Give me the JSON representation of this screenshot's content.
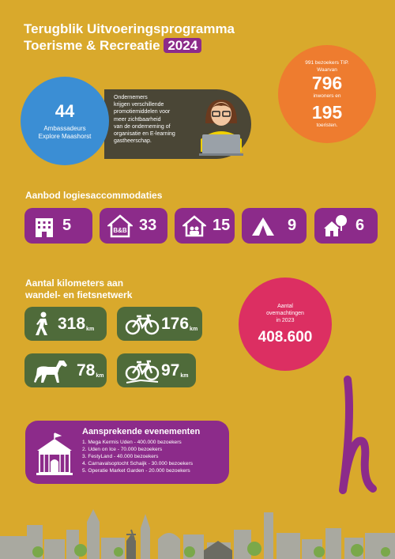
{
  "header": {
    "title_line1": "Terugblik Uitvoeringsprogramma",
    "title_line2": "Toerisme & Recreatie",
    "year": "2024"
  },
  "ambassadors": {
    "count": "44",
    "label_line1": "Ambassadeurs",
    "label_line2": "Explore Maashorst"
  },
  "entrepreneurs": {
    "lines": [
      "Ondernemers",
      "krijgen verschillende",
      "promotiemiddelen voor",
      "meer zichtbaarheid",
      "van de onderneming of",
      "organisatie en E-learning",
      "gastheerschap."
    ]
  },
  "tip": {
    "intro_line1": "991 bezoekers TIP.",
    "intro_line2": "Waarvan",
    "residents_count": "796",
    "residents_label": "inwoners en",
    "tourists_count": "195",
    "tourists_label": "toeristen."
  },
  "accommodations": {
    "heading": "Aanbod logiesaccommodaties",
    "items": [
      {
        "icon": "hotel-icon",
        "value": "5"
      },
      {
        "icon": "bnb-icon",
        "value": "33",
        "icon_text": "B&B"
      },
      {
        "icon": "holiday-home-icon",
        "value": "15"
      },
      {
        "icon": "tent-icon",
        "value": "9"
      },
      {
        "icon": "nature-house-icon",
        "value": "6"
      }
    ]
  },
  "network": {
    "heading_line1": "Aantal kilometers aan",
    "heading_line2": "wandel- en fietsnetwerk",
    "items": [
      {
        "icon": "walking-icon",
        "value": "318",
        "unit": "km"
      },
      {
        "icon": "bicycle-icon",
        "value": "176",
        "unit": "km"
      },
      {
        "icon": "horse-icon",
        "value": "78",
        "unit": "km"
      },
      {
        "icon": "mountain-bike-icon",
        "value": "97",
        "unit": "km"
      }
    ]
  },
  "overnight": {
    "label_line1": "Aantal",
    "label_line2": "overnachtingen",
    "label_line3": "in 2023",
    "value": "408.600"
  },
  "events": {
    "title": "Aansprekende evenementen",
    "items": [
      "1. Mega Kermis Uden - 400.000 bezoekers",
      "2. Uden on Ice - 70.000 bezoekers",
      "3. FestyLand - 40.000 bezoekers",
      "4. Carnavalsoptocht Schaijk - 30.000 bezoekers",
      "5. Operatie Market Garden - 20.000 bezoekers"
    ]
  },
  "colors": {
    "background": "#d9a92c",
    "purple": "#8c2b8a",
    "green": "#4f6b3a",
    "blue": "#3b8ed4",
    "orange": "#ee7c2f",
    "pink": "#dc2f62",
    "dark": "#4a4636"
  }
}
